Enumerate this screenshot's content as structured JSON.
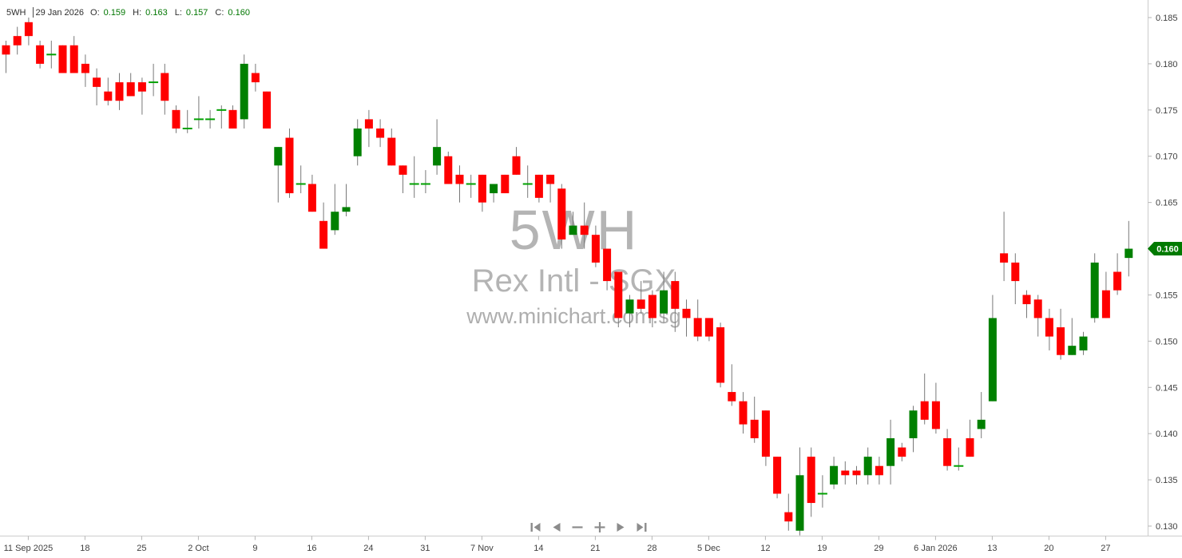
{
  "header": {
    "symbol": "5WH",
    "date": "29 Jan 2026",
    "open_label": "O:",
    "open_value": "0.159",
    "high_label": "H:",
    "high_value": "0.163",
    "low_label": "L:",
    "low_value": "0.157",
    "close_label": "C:",
    "close_value": "0.160"
  },
  "watermark": {
    "symbol": "5WH",
    "name": "Rex Intl - SGX",
    "url": "www.minichart.com.sg"
  },
  "price_badge": {
    "value": "0.160"
  },
  "toolbar": {
    "buttons": [
      {
        "name": "skip-start"
      },
      {
        "name": "step-back"
      },
      {
        "name": "zoom-out"
      },
      {
        "name": "zoom-in"
      },
      {
        "name": "step-forward"
      },
      {
        "name": "skip-end"
      }
    ]
  },
  "colors": {
    "up": "#008000",
    "down": "#ff0000",
    "wick": "#787878",
    "doji": "#00a000",
    "axis_line": "#cccccc",
    "axis_text": "#3f3f3f",
    "badge": "#007a00",
    "badge_text": "#ffffff",
    "watermark": "#b4b4b4"
  },
  "chart_data": {
    "type": "candlestick",
    "symbol": "5WH",
    "name": "Rex Intl - SGX",
    "source": "www.minichart.com.sg",
    "last_price": 0.16,
    "price_max": 0.185,
    "price_min": 0.13,
    "price_step": 0.005,
    "grid": false,
    "y_ticks": [
      "0.185",
      "0.180",
      "0.175",
      "0.170",
      "0.165",
      "0.160",
      "0.155",
      "0.150",
      "0.145",
      "0.140",
      "0.135",
      "0.130"
    ],
    "x_ticks": [
      {
        "index": 2,
        "label": "11 Sep 2025"
      },
      {
        "index": 7,
        "label": "18"
      },
      {
        "index": 12,
        "label": "25"
      },
      {
        "index": 17,
        "label": "2 Oct"
      },
      {
        "index": 22,
        "label": "9"
      },
      {
        "index": 27,
        "label": "16"
      },
      {
        "index": 32,
        "label": "24"
      },
      {
        "index": 37,
        "label": "31"
      },
      {
        "index": 42,
        "label": "7 Nov"
      },
      {
        "index": 47,
        "label": "14"
      },
      {
        "index": 52,
        "label": "21"
      },
      {
        "index": 57,
        "label": "28"
      },
      {
        "index": 62,
        "label": "5 Dec"
      },
      {
        "index": 67,
        "label": "12"
      },
      {
        "index": 72,
        "label": "19"
      },
      {
        "index": 77,
        "label": "29"
      },
      {
        "index": 82,
        "label": "6 Jan 2026"
      },
      {
        "index": 87,
        "label": "13"
      },
      {
        "index": 92,
        "label": "20"
      },
      {
        "index": 97,
        "label": "27"
      }
    ],
    "candles": [
      [
        "2025-09-09",
        0.182,
        0.1825,
        0.179,
        0.181
      ],
      [
        "2025-09-10",
        0.183,
        0.184,
        0.181,
        0.182
      ],
      [
        "2025-09-11",
        0.1845,
        0.185,
        0.182,
        0.183
      ],
      [
        "2025-09-12",
        0.182,
        0.1825,
        0.1795,
        0.18
      ],
      [
        "2025-09-15",
        0.181,
        0.1825,
        0.1795,
        0.181
      ],
      [
        "2025-09-16",
        0.182,
        0.182,
        0.179,
        0.179
      ],
      [
        "2025-09-17",
        0.182,
        0.183,
        0.179,
        0.179
      ],
      [
        "2025-09-18",
        0.18,
        0.181,
        0.1775,
        0.179
      ],
      [
        "2025-09-19",
        0.1785,
        0.1795,
        0.1755,
        0.1775
      ],
      [
        "2025-09-22",
        0.177,
        0.1785,
        0.1755,
        0.176
      ],
      [
        "2025-09-23",
        0.178,
        0.179,
        0.175,
        0.176
      ],
      [
        "2025-09-24",
        0.178,
        0.179,
        0.1765,
        0.1765
      ],
      [
        "2025-09-25",
        0.178,
        0.1785,
        0.1745,
        0.177
      ],
      [
        "2025-09-26",
        0.178,
        0.18,
        0.1765,
        0.178
      ],
      [
        "2025-09-29",
        0.179,
        0.18,
        0.1745,
        0.176
      ],
      [
        "2025-09-30",
        0.175,
        0.1755,
        0.1725,
        0.173
      ],
      [
        "2025-10-01",
        0.173,
        0.175,
        0.1725,
        0.173
      ],
      [
        "2025-10-02",
        0.174,
        0.1765,
        0.173,
        0.174
      ],
      [
        "2025-10-03",
        0.174,
        0.175,
        0.173,
        0.174
      ],
      [
        "2025-10-06",
        0.175,
        0.1755,
        0.173,
        0.175
      ],
      [
        "2025-10-07",
        0.175,
        0.1755,
        0.173,
        0.173
      ],
      [
        "2025-10-08",
        0.174,
        0.181,
        0.173,
        0.18
      ],
      [
        "2025-10-09",
        0.179,
        0.18,
        0.177,
        0.178
      ],
      [
        "2025-10-10",
        0.177,
        0.177,
        0.173,
        0.173
      ],
      [
        "2025-10-13",
        0.169,
        0.171,
        0.165,
        0.171
      ],
      [
        "2025-10-14",
        0.172,
        0.173,
        0.1655,
        0.166
      ],
      [
        "2025-10-15",
        0.167,
        0.169,
        0.166,
        0.167
      ],
      [
        "2025-10-16",
        0.167,
        0.168,
        0.164,
        0.164
      ],
      [
        "2025-10-17",
        0.163,
        0.165,
        0.16,
        0.16
      ],
      [
        "2025-10-21",
        0.162,
        0.167,
        0.1615,
        0.164
      ],
      [
        "2025-10-22",
        0.164,
        0.167,
        0.1635,
        0.1645
      ],
      [
        "2025-10-23",
        0.17,
        0.174,
        0.169,
        0.173
      ],
      [
        "2025-10-24",
        0.174,
        0.175,
        0.171,
        0.173
      ],
      [
        "2025-10-27",
        0.173,
        0.174,
        0.171,
        0.172
      ],
      [
        "2025-10-28",
        0.172,
        0.173,
        0.169,
        0.169
      ],
      [
        "2025-10-29",
        0.169,
        0.169,
        0.166,
        0.168
      ],
      [
        "2025-10-30",
        0.167,
        0.17,
        0.1655,
        0.167
      ],
      [
        "2025-10-31",
        0.167,
        0.1685,
        0.166,
        0.167
      ],
      [
        "2025-11-03",
        0.169,
        0.174,
        0.168,
        0.171
      ],
      [
        "2025-11-04",
        0.17,
        0.1705,
        0.167,
        0.167
      ],
      [
        "2025-11-05",
        0.168,
        0.169,
        0.165,
        0.167
      ],
      [
        "2025-11-06",
        0.167,
        0.168,
        0.1655,
        0.167
      ],
      [
        "2025-11-07",
        0.168,
        0.168,
        0.164,
        0.165
      ],
      [
        "2025-11-10",
        0.166,
        0.167,
        0.165,
        0.167
      ],
      [
        "2025-11-11",
        0.168,
        0.168,
        0.166,
        0.166
      ],
      [
        "2025-11-12",
        0.17,
        0.171,
        0.168,
        0.168
      ],
      [
        "2025-11-13",
        0.167,
        0.169,
        0.1655,
        0.167
      ],
      [
        "2025-11-14",
        0.168,
        0.168,
        0.165,
        0.1655
      ],
      [
        "2025-11-17",
        0.168,
        0.168,
        0.165,
        0.167
      ],
      [
        "2025-11-18",
        0.1665,
        0.167,
        0.16,
        0.161
      ],
      [
        "2025-11-19",
        0.1615,
        0.164,
        0.1615,
        0.1625
      ],
      [
        "2025-11-20",
        0.1625,
        0.165,
        0.16,
        0.1615
      ],
      [
        "2025-11-21",
        0.1615,
        0.1625,
        0.158,
        0.1585
      ],
      [
        "2025-11-24",
        0.16,
        0.16,
        0.1555,
        0.1565
      ],
      [
        "2025-11-25",
        0.1575,
        0.1575,
        0.1515,
        0.1525
      ],
      [
        "2025-11-26",
        0.153,
        0.155,
        0.1515,
        0.1545
      ],
      [
        "2025-11-27",
        0.1545,
        0.1565,
        0.153,
        0.1535
      ],
      [
        "2025-11-28",
        0.155,
        0.1555,
        0.1515,
        0.1525
      ],
      [
        "2025-12-01",
        0.153,
        0.1575,
        0.152,
        0.1555
      ],
      [
        "2025-12-02",
        0.1565,
        0.1575,
        0.151,
        0.1535
      ],
      [
        "2025-12-03",
        0.1535,
        0.1545,
        0.1505,
        0.1525
      ],
      [
        "2025-12-04",
        0.1525,
        0.1545,
        0.15,
        0.1505
      ],
      [
        "2025-12-05",
        0.1525,
        0.1525,
        0.15,
        0.1505
      ],
      [
        "2025-12-08",
        0.1515,
        0.152,
        0.145,
        0.1455
      ],
      [
        "2025-12-09",
        0.1445,
        0.1475,
        0.143,
        0.1435
      ],
      [
        "2025-12-10",
        0.1435,
        0.1445,
        0.14,
        0.141
      ],
      [
        "2025-12-11",
        0.1415,
        0.144,
        0.139,
        0.1395
      ],
      [
        "2025-12-12",
        0.1425,
        0.1425,
        0.1365,
        0.1375
      ],
      [
        "2025-12-15",
        0.1375,
        0.1375,
        0.133,
        0.1335
      ],
      [
        "2025-12-16",
        0.1315,
        0.1335,
        0.1295,
        0.1305
      ],
      [
        "2025-12-17",
        0.1295,
        0.1385,
        0.129,
        0.1355
      ],
      [
        "2025-12-18",
        0.1375,
        0.1385,
        0.131,
        0.1325
      ],
      [
        "2025-12-19",
        0.1335,
        0.1355,
        0.132,
        0.1335
      ],
      [
        "2025-12-22",
        0.1345,
        0.1375,
        0.134,
        0.1365
      ],
      [
        "2025-12-23",
        0.136,
        0.137,
        0.1345,
        0.1355
      ],
      [
        "2025-12-24",
        0.136,
        0.1365,
        0.1345,
        0.1355
      ],
      [
        "2025-12-26",
        0.1355,
        0.1385,
        0.1345,
        0.1375
      ],
      [
        "2025-12-29",
        0.1365,
        0.1375,
        0.1345,
        0.1355
      ],
      [
        "2025-12-30",
        0.1365,
        0.1415,
        0.1345,
        0.1395
      ],
      [
        "2025-12-31",
        0.1385,
        0.139,
        0.137,
        0.1375
      ],
      [
        "2026-01-02",
        0.1395,
        0.143,
        0.138,
        0.1425
      ],
      [
        "2026-01-05",
        0.1435,
        0.1465,
        0.141,
        0.1415
      ],
      [
        "2026-01-06",
        0.1435,
        0.1455,
        0.14,
        0.1405
      ],
      [
        "2026-01-07",
        0.1395,
        0.1405,
        0.136,
        0.1365
      ],
      [
        "2026-01-08",
        0.1365,
        0.1385,
        0.136,
        0.1365
      ],
      [
        "2026-01-09",
        0.1395,
        0.1415,
        0.1375,
        0.1375
      ],
      [
        "2026-01-12",
        0.1405,
        0.1445,
        0.1395,
        0.1415
      ],
      [
        "2026-01-13",
        0.1435,
        0.155,
        0.1435,
        0.1525
      ],
      [
        "2026-01-14",
        0.1595,
        0.164,
        0.1565,
        0.1585
      ],
      [
        "2026-01-15",
        0.1585,
        0.1595,
        0.154,
        0.1565
      ],
      [
        "2026-01-16",
        0.155,
        0.1555,
        0.1525,
        0.154
      ],
      [
        "2026-01-19",
        0.1545,
        0.155,
        0.1505,
        0.1525
      ],
      [
        "2026-01-20",
        0.1525,
        0.1535,
        0.149,
        0.1505
      ],
      [
        "2026-01-21",
        0.1515,
        0.1535,
        0.148,
        0.1485
      ],
      [
        "2026-01-22",
        0.1485,
        0.1525,
        0.1485,
        0.1495
      ],
      [
        "2026-01-23",
        0.149,
        0.151,
        0.1485,
        0.1505
      ],
      [
        "2026-01-26",
        0.1525,
        0.1595,
        0.152,
        0.1585
      ],
      [
        "2026-01-27",
        0.1555,
        0.1575,
        0.1525,
        0.1525
      ],
      [
        "2026-01-28",
        0.1575,
        0.1595,
        0.155,
        0.1555
      ],
      [
        "2026-01-29",
        0.159,
        0.163,
        0.157,
        0.16
      ]
    ]
  }
}
